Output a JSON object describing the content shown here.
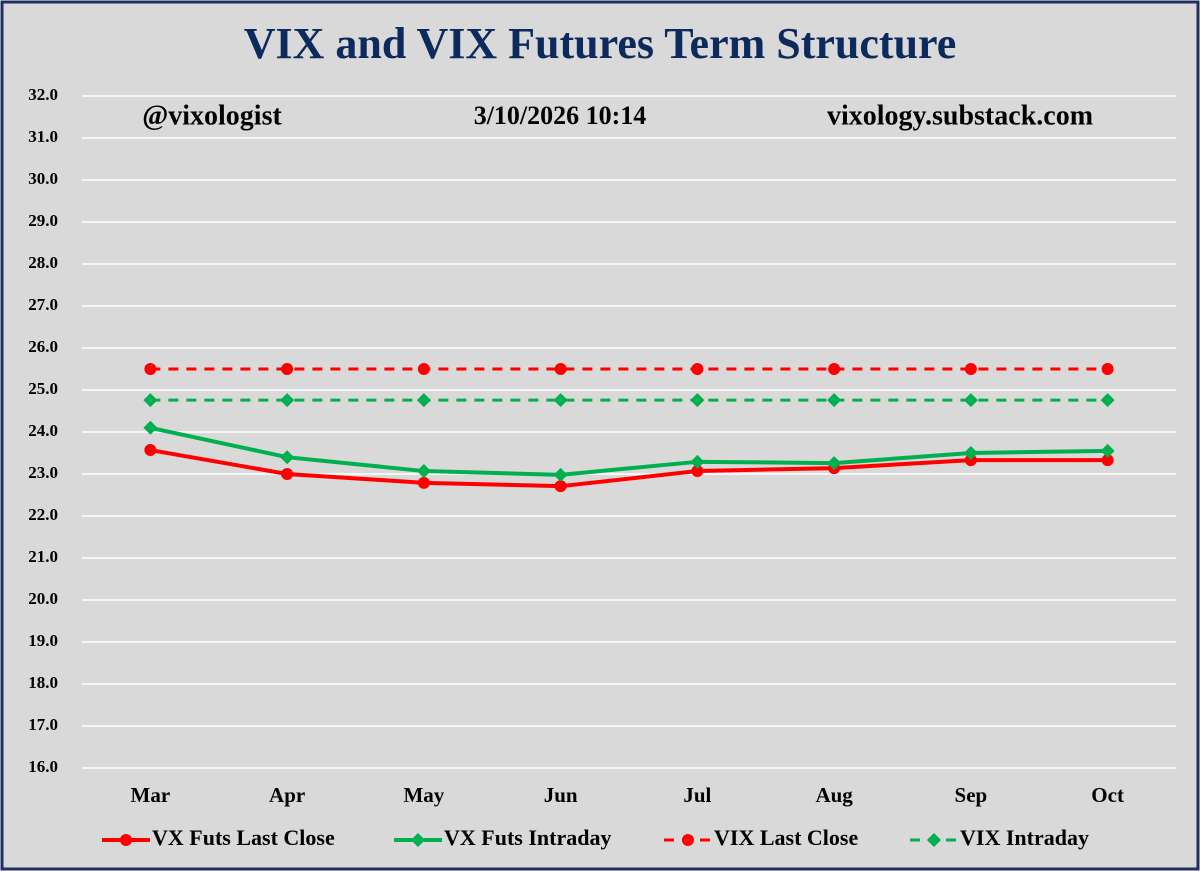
{
  "chart_data": {
    "type": "line",
    "title": "VIX and VIX Futures Term Structure",
    "annotations": [
      "@vixologist",
      "3/10/2026 10:14",
      "vixology.substack.com"
    ],
    "categories": [
      "Mar",
      "Apr",
      "May",
      "Jun",
      "Jul",
      "Aug",
      "Sep",
      "Oct"
    ],
    "series": [
      {
        "name": "VX Futs Last Close",
        "color": "#ff0000",
        "dash": false,
        "marker": "circle",
        "values": [
          23.57,
          23.0,
          22.79,
          22.71,
          23.07,
          23.14,
          23.33,
          23.33
        ]
      },
      {
        "name": "VX Futs Intraday",
        "color": "#00b050",
        "dash": false,
        "marker": "diamond",
        "values": [
          24.1,
          23.4,
          23.07,
          22.98,
          23.29,
          23.26,
          23.5,
          23.55
        ]
      },
      {
        "name": "VIX Last Close",
        "color": "#ff0000",
        "dash": true,
        "marker": "circle",
        "values": [
          25.5,
          25.5,
          25.5,
          25.5,
          25.5,
          25.5,
          25.5,
          25.5
        ]
      },
      {
        "name": "VIX Intraday",
        "color": "#00b050",
        "dash": true,
        "marker": "diamond",
        "values": [
          24.76,
          24.76,
          24.76,
          24.76,
          24.76,
          24.76,
          24.76,
          24.76
        ]
      }
    ],
    "ylim": [
      16,
      32
    ],
    "yticks": [
      {
        "value": 16,
        "label": "16.0"
      },
      {
        "value": 17,
        "label": "17.0"
      },
      {
        "value": 18,
        "label": "18.0"
      },
      {
        "value": 19,
        "label": "19.0"
      },
      {
        "value": 20,
        "label": "20.0"
      },
      {
        "value": 21,
        "label": "21.0"
      },
      {
        "value": 22,
        "label": "22.0"
      },
      {
        "value": 23,
        "label": "23.0"
      },
      {
        "value": 24,
        "label": "24.0"
      },
      {
        "value": 25,
        "label": "25.0"
      },
      {
        "value": 26,
        "label": "26.0"
      },
      {
        "value": 27,
        "label": "27.0"
      },
      {
        "value": 28,
        "label": "28.0"
      },
      {
        "value": 29,
        "label": "29.0"
      },
      {
        "value": 30,
        "label": "30.0"
      },
      {
        "value": 31,
        "label": "31.0"
      },
      {
        "value": 32,
        "label": "32.0"
      }
    ],
    "grid": true
  }
}
